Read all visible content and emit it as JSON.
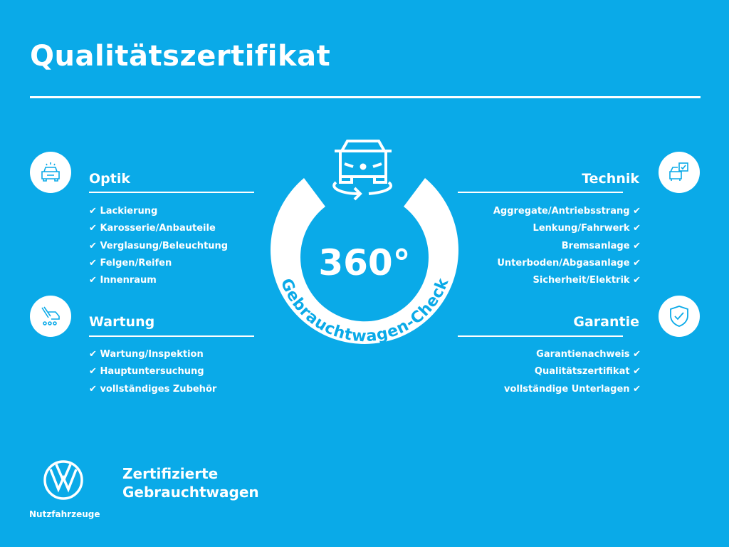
{
  "title": "Qualitätszertifikat",
  "center": {
    "number": "360°",
    "arc_text": "Gebrauchtwagen-Check"
  },
  "sections": {
    "optik": {
      "heading": "Optik",
      "items": [
        "Lackierung",
        "Karosserie/Anbauteile",
        "Verglasung/Beleuchtung",
        "Felgen/Reifen",
        "Innenraum"
      ]
    },
    "wartung": {
      "heading": "Wartung",
      "items": [
        "Wartung/Inspektion",
        "Hauptuntersuchung",
        "vollständiges Zubehör"
      ]
    },
    "technik": {
      "heading": "Technik",
      "items": [
        "Aggregate/Antriebsstrang",
        "Lenkung/Fahrwerk",
        "Bremsanlage",
        "Unterboden/Abgasanlage",
        "Sicherheit/Elektrik"
      ]
    },
    "garantie": {
      "heading": "Garantie",
      "items": [
        "Garantienachweis",
        "Qualitätszertifikat",
        "vollständige Unterlagen"
      ]
    }
  },
  "check": "✔",
  "footer": {
    "line1": "Zertifizierte",
    "line2": "Gebrauchtwagen",
    "logo_caption": "Nutzfahrzeuge"
  },
  "colors": {
    "background": "#0aaae8",
    "foreground": "#ffffff"
  }
}
